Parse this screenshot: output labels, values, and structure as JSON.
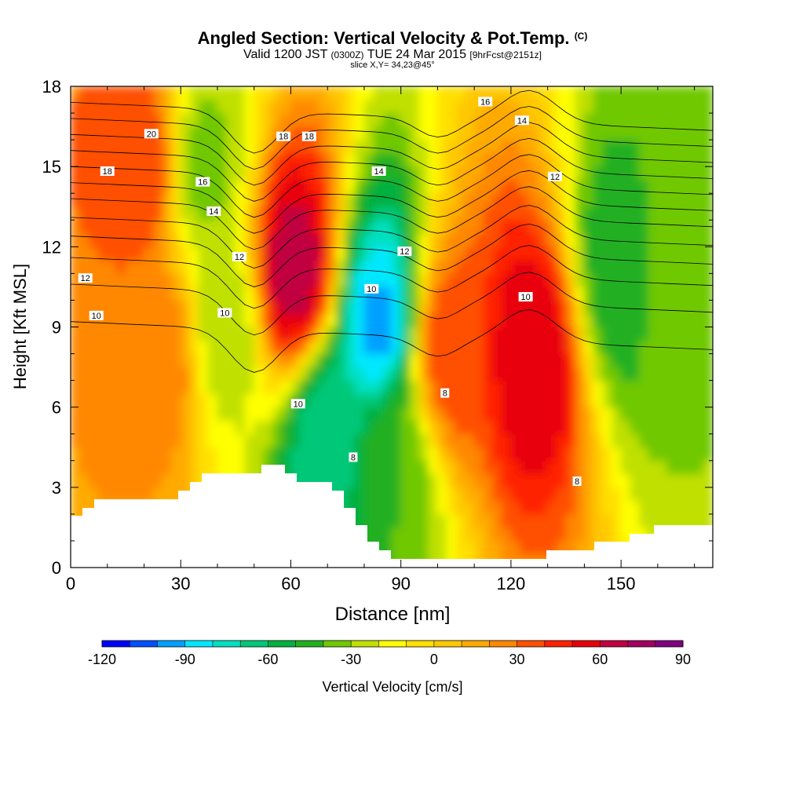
{
  "title": {
    "main": "Angled Section: Vertical Velocity & Pot.Temp.",
    "mark": "(C)",
    "valid_prefix": "Valid 1200 JST",
    "valid_z": "(0300Z)",
    "valid_date": "TUE 24 Mar 2015",
    "valid_fcst": "[9hrFcst@2151z]",
    "slice": "slice X,Y= 34,23@45°"
  },
  "colors": {
    "scale": [
      "#0000ff",
      "#0050ff",
      "#00a0ff",
      "#00e8ff",
      "#00e0c0",
      "#00c878",
      "#00b040",
      "#20b020",
      "#70c800",
      "#c0e000",
      "#ffff00",
      "#ffe000",
      "#ffc800",
      "#ffaa00",
      "#ff8800",
      "#ff5000",
      "#ff2000",
      "#e8000a",
      "#c00040",
      "#a00060",
      "#800080"
    ],
    "terrain": "#ffffff"
  },
  "chart_data": {
    "type": "heatmap",
    "xlabel": "Distance [nm]",
    "ylabel": "Height [Kft MSL]",
    "xlim": [
      0,
      175
    ],
    "ylim": [
      0,
      18
    ],
    "xticks": [
      0,
      30,
      60,
      90,
      120,
      150
    ],
    "yticks": [
      0,
      3,
      6,
      9,
      12,
      15,
      18
    ],
    "colorbar": {
      "label": "Vertical Velocity [cm/s]",
      "min": -120,
      "max": 90,
      "step": 10,
      "tick_labels": [
        -120,
        -90,
        -60,
        -30,
        0,
        30,
        60,
        90
      ]
    },
    "vertical_velocity_cells": [
      {
        "x": 20,
        "y": 15,
        "value": 40
      },
      {
        "x": 25,
        "y": 8,
        "value": 30
      },
      {
        "x": 36,
        "y": 15,
        "value": -35
      },
      {
        "x": 42,
        "y": 9,
        "value": -30
      },
      {
        "x": 61,
        "y": 11,
        "value": 70
      },
      {
        "x": 70,
        "y": 5,
        "value": -70
      },
      {
        "x": 84,
        "y": 9,
        "value": -95
      },
      {
        "x": 88,
        "y": 4,
        "value": -40
      },
      {
        "x": 103,
        "y": 8,
        "value": 40
      },
      {
        "x": 126,
        "y": 8,
        "value": 60
      },
      {
        "x": 150,
        "y": 11,
        "value": -50
      },
      {
        "x": 164,
        "y": 11,
        "value": -30
      }
    ],
    "potential_temperature_labels": [
      {
        "text": "20",
        "x": 22,
        "y": 16.2
      },
      {
        "text": "18",
        "x": 10,
        "y": 14.8
      },
      {
        "text": "16",
        "x": 36,
        "y": 14.4
      },
      {
        "text": "14",
        "x": 39,
        "y": 13.3
      },
      {
        "text": "12",
        "x": 46,
        "y": 11.6
      },
      {
        "text": "12",
        "x": 4,
        "y": 10.8
      },
      {
        "text": "10",
        "x": 7,
        "y": 9.4
      },
      {
        "text": "10",
        "x": 42,
        "y": 9.5
      },
      {
        "text": "18",
        "x": 58,
        "y": 16.1
      },
      {
        "text": "18",
        "x": 65,
        "y": 16.1
      },
      {
        "text": "14",
        "x": 84,
        "y": 14.8
      },
      {
        "text": "12",
        "x": 91,
        "y": 11.8
      },
      {
        "text": "10",
        "x": 82,
        "y": 10.4
      },
      {
        "text": "10",
        "x": 62,
        "y": 6.1
      },
      {
        "text": "8",
        "x": 77,
        "y": 4.1
      },
      {
        "text": "8",
        "x": 102,
        "y": 6.5
      },
      {
        "text": "16",
        "x": 113,
        "y": 17.4
      },
      {
        "text": "14",
        "x": 123,
        "y": 16.7
      },
      {
        "text": "12",
        "x": 132,
        "y": 14.6
      },
      {
        "text": "10",
        "x": 124,
        "y": 10.1
      },
      {
        "text": "8",
        "x": 138,
        "y": 3.2
      }
    ]
  }
}
